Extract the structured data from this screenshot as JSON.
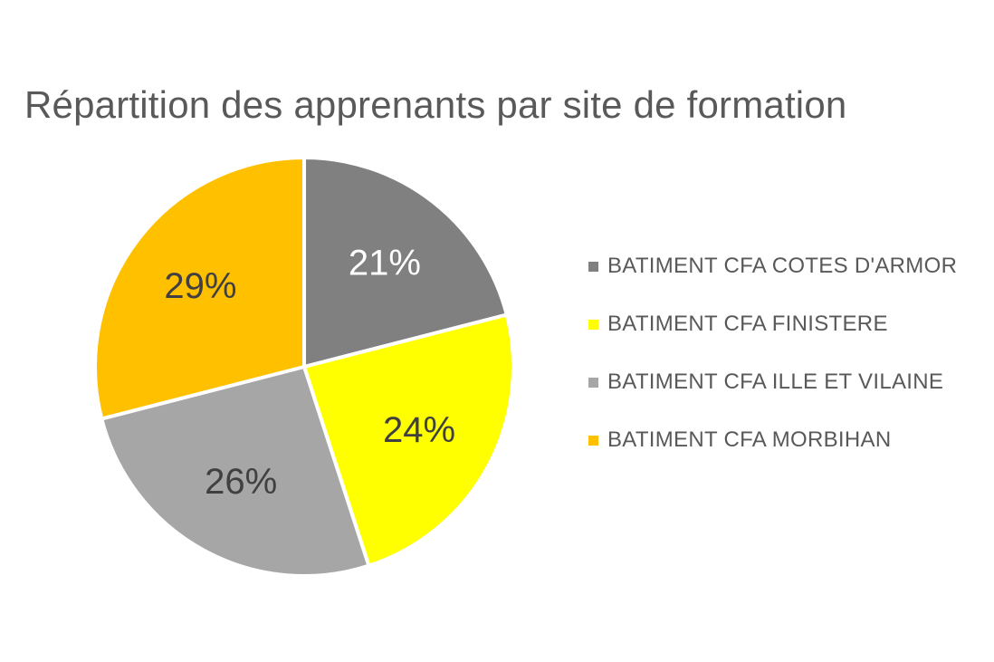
{
  "chart_data": {
    "type": "pie",
    "title": "Répartition des apprenants par site de formation",
    "slices": [
      {
        "name": "BATIMENT CFA COTES D'ARMOR",
        "value": 21,
        "label": "21%",
        "color": "#808080",
        "label_color": "#ffffff"
      },
      {
        "name": "BATIMENT CFA FINISTERE",
        "value": 24,
        "label": "24%",
        "color": "#ffff00",
        "label_color": "#404040"
      },
      {
        "name": "BATIMENT CFA ILLE ET VILAINE",
        "value": 26,
        "label": "26%",
        "color": "#a6a6a6",
        "label_color": "#404040"
      },
      {
        "name": "BATIMENT CFA MORBIHAN",
        "value": 29,
        "label": "29%",
        "color": "#ffc000",
        "label_color": "#404040"
      }
    ],
    "legend_position": "right",
    "start": "top",
    "direction": "clockwise"
  }
}
